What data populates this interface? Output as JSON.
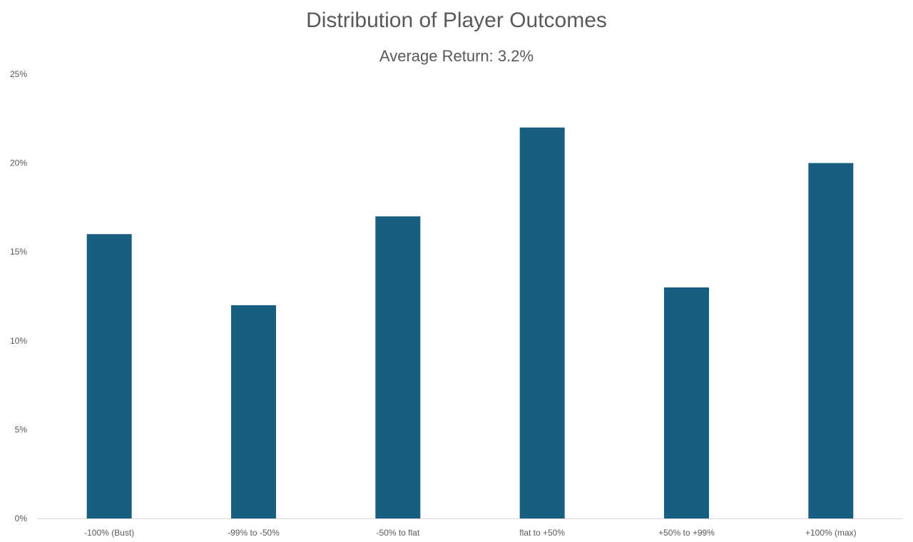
{
  "chart_data": {
    "type": "bar",
    "title": "Distribution of Player Outcomes",
    "subtitle": "Average Return: 3.2%",
    "categories": [
      "-100% (Bust)",
      "-99% to -50%",
      "-50% to flat",
      "flat to +50%",
      "+50% to +99%",
      "+100% (max)"
    ],
    "values": [
      16,
      12,
      17,
      22,
      13,
      20
    ],
    "ylim": [
      0,
      25
    ],
    "yticks": [
      "0%",
      "5%",
      "10%",
      "15%",
      "20%",
      "25%"
    ],
    "ytick_values": [
      0,
      5,
      10,
      15,
      20,
      25
    ],
    "grid": false,
    "bar_color": "#175E81",
    "xlabel": "",
    "ylabel": ""
  }
}
